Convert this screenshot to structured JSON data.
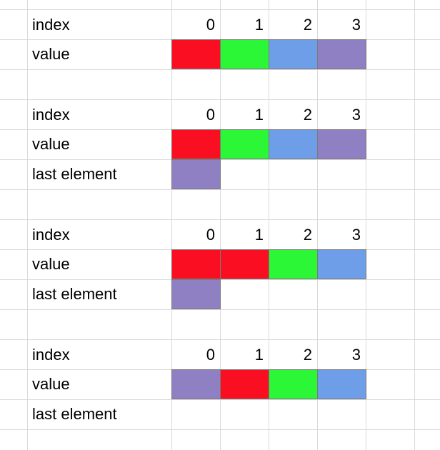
{
  "colors": {
    "red": "#fa0e22",
    "green": "#2bf737",
    "blue": "#6f9ee8",
    "purple": "#8f7fc3"
  },
  "blocks": [
    {
      "index_label": "index",
      "value_label": "value",
      "indices": [
        "0",
        "1",
        "2",
        "3"
      ],
      "values": [
        "red",
        "green",
        "blue",
        "purple"
      ]
    },
    {
      "index_label": "index",
      "value_label": "value",
      "last_label": "last element",
      "indices": [
        "0",
        "1",
        "2",
        "3"
      ],
      "values": [
        "red",
        "green",
        "blue",
        "purple"
      ],
      "last_value": "purple"
    },
    {
      "index_label": "index",
      "value_label": "value",
      "last_label": "last element",
      "indices": [
        "0",
        "1",
        "2",
        "3"
      ],
      "values": [
        "red",
        "red",
        "green",
        "blue"
      ],
      "last_value": "purple"
    },
    {
      "index_label": "index",
      "value_label": "value",
      "last_label": "last element",
      "indices": [
        "0",
        "1",
        "2",
        "3"
      ],
      "values": [
        "purple",
        "red",
        "green",
        "blue"
      ],
      "last_value": ""
    }
  ]
}
